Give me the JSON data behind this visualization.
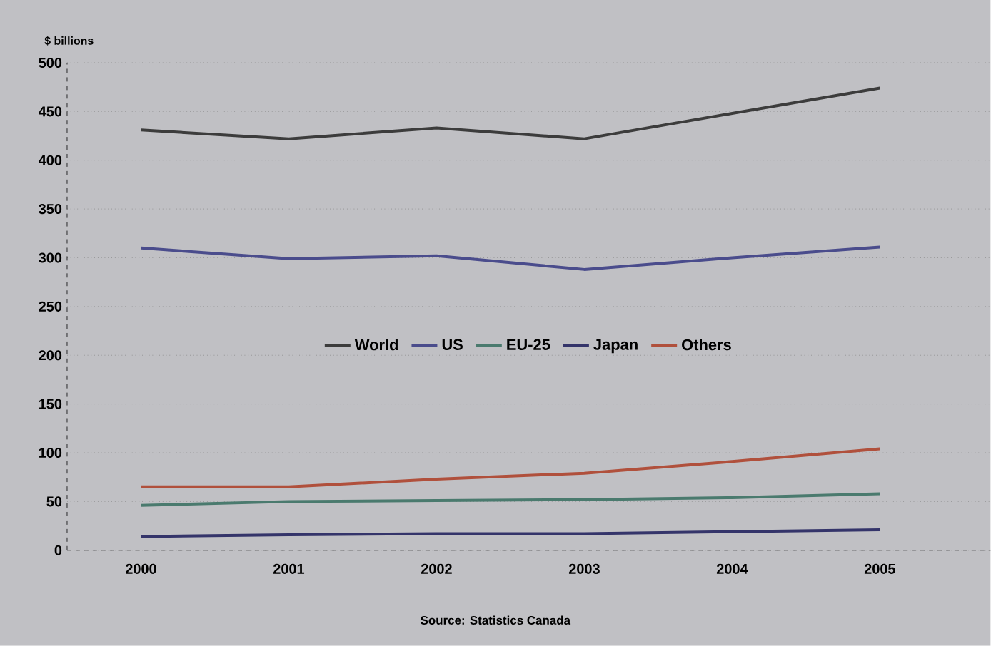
{
  "chart_data": {
    "type": "line",
    "ylabel": "$ billions",
    "categories": [
      "2000",
      "2001",
      "2002",
      "2003",
      "2004",
      "2005"
    ],
    "series": [
      {
        "name": "World",
        "color": "#3c3c3c",
        "values": [
          431,
          422,
          433,
          422,
          448,
          474
        ]
      },
      {
        "name": "US",
        "color": "#4a4c8c",
        "values": [
          310,
          299,
          302,
          288,
          300,
          311
        ]
      },
      {
        "name": "EU-25",
        "color": "#4a7a6e",
        "values": [
          46,
          50,
          51,
          52,
          54,
          58
        ]
      },
      {
        "name": "Japan",
        "color": "#34346a",
        "values": [
          14,
          16,
          17,
          17,
          19,
          21
        ]
      },
      {
        "name": "Others",
        "color": "#b0503c",
        "values": [
          65,
          65,
          73,
          79,
          91,
          104
        ]
      }
    ],
    "ylim": [
      0,
      500
    ],
    "yticks": [
      0,
      50,
      100,
      150,
      200,
      250,
      300,
      350,
      400,
      450,
      500
    ],
    "grid": "y",
    "legend": "center",
    "line_style": "solid",
    "marker": "none",
    "annotations": [
      "Source: Statistics Canada"
    ]
  }
}
